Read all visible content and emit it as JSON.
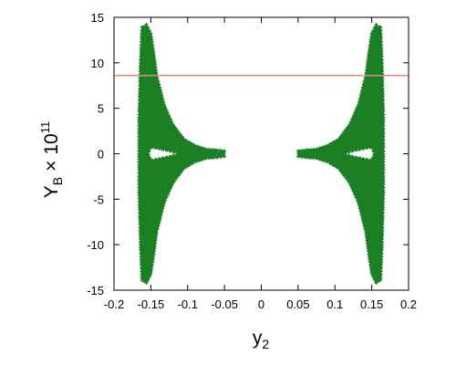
{
  "chart_data": {
    "type": "scatter",
    "xlabel": {
      "base": "y",
      "subscript": "2"
    },
    "ylabel": {
      "base": "Y",
      "subscript": "B",
      "times": "×",
      "power_base": "10",
      "exponent": "11"
    },
    "xlim": [
      -0.2,
      0.2
    ],
    "ylim": [
      -15,
      15
    ],
    "x_ticks": [
      {
        "value": -0.2,
        "label": "-0.2"
      },
      {
        "value": -0.15,
        "label": "-0.15"
      },
      {
        "value": -0.1,
        "label": "-0.1"
      },
      {
        "value": -0.05,
        "label": "-0.05"
      },
      {
        "value": 0,
        "label": "0"
      },
      {
        "value": 0.05,
        "label": "0.05"
      },
      {
        "value": 0.1,
        "label": "0.1"
      },
      {
        "value": 0.15,
        "label": "0.15"
      },
      {
        "value": 0.2,
        "label": "0.2"
      }
    ],
    "y_ticks": [
      {
        "value": -15,
        "label": "-15"
      },
      {
        "value": -10,
        "label": "-10"
      },
      {
        "value": -5,
        "label": "-5"
      },
      {
        "value": 0,
        "label": "0"
      },
      {
        "value": 5,
        "label": "5"
      },
      {
        "value": 10,
        "label": "10"
      },
      {
        "value": 15,
        "label": "15"
      }
    ],
    "grid": false,
    "legend": "none",
    "reference_line": {
      "orientation": "horizontal",
      "y": 8.6,
      "color": "#e08a8a"
    },
    "series": [
      {
        "marker": "+",
        "color": "#1b7f24",
        "regions": [
          {
            "side": "left",
            "outline": [
              [
                -0.162,
                13.9
              ],
              [
                -0.156,
                14.2
              ],
              [
                -0.15,
                13.2
              ],
              [
                -0.146,
                11.0
              ],
              [
                -0.142,
                8.6
              ],
              [
                -0.132,
                5.4
              ],
              [
                -0.12,
                3.2
              ],
              [
                -0.105,
                1.6
              ],
              [
                -0.09,
                0.9
              ],
              [
                -0.075,
                0.5
              ],
              [
                -0.06,
                0.4
              ],
              [
                -0.05,
                0.3
              ],
              [
                -0.05,
                -0.3
              ],
              [
                -0.06,
                -0.4
              ],
              [
                -0.075,
                -0.5
              ],
              [
                -0.09,
                -0.9
              ],
              [
                -0.105,
                -1.6
              ],
              [
                -0.12,
                -3.2
              ],
              [
                -0.132,
                -5.4
              ],
              [
                -0.142,
                -8.6
              ],
              [
                -0.146,
                -11.0
              ],
              [
                -0.15,
                -13.2
              ],
              [
                -0.156,
                -14.2
              ],
              [
                -0.162,
                -13.9
              ],
              [
                -0.164,
                -10.0
              ],
              [
                -0.166,
                -4.0
              ],
              [
                -0.166,
                0.0
              ],
              [
                -0.166,
                4.0
              ],
              [
                -0.164,
                10.0
              ]
            ]
          },
          {
            "side": "left",
            "hole": true,
            "outline": [
              [
                -0.15,
                0.7
              ],
              [
                -0.14,
                0.55
              ],
              [
                -0.125,
                0.3
              ],
              [
                -0.112,
                0.0
              ],
              [
                -0.125,
                -0.3
              ],
              [
                -0.14,
                -0.55
              ],
              [
                -0.15,
                -0.7
              ],
              [
                -0.153,
                0.0
              ]
            ]
          },
          {
            "side": "right",
            "outline": [
              [
                0.162,
                13.9
              ],
              [
                0.156,
                14.2
              ],
              [
                0.15,
                13.2
              ],
              [
                0.146,
                11.0
              ],
              [
                0.142,
                8.6
              ],
              [
                0.132,
                5.4
              ],
              [
                0.12,
                3.2
              ],
              [
                0.105,
                1.6
              ],
              [
                0.09,
                0.9
              ],
              [
                0.075,
                0.5
              ],
              [
                0.06,
                0.4
              ],
              [
                0.05,
                0.3
              ],
              [
                0.05,
                -0.3
              ],
              [
                0.06,
                -0.4
              ],
              [
                0.075,
                -0.5
              ],
              [
                0.09,
                -0.9
              ],
              [
                0.105,
                -1.6
              ],
              [
                0.12,
                -3.2
              ],
              [
                0.132,
                -5.4
              ],
              [
                0.142,
                -8.6
              ],
              [
                0.146,
                -11.0
              ],
              [
                0.15,
                -13.2
              ],
              [
                0.156,
                -14.2
              ],
              [
                0.162,
                -13.9
              ],
              [
                0.164,
                -10.0
              ],
              [
                0.166,
                -4.0
              ],
              [
                0.166,
                0.0
              ],
              [
                0.166,
                4.0
              ],
              [
                0.164,
                10.0
              ]
            ]
          },
          {
            "side": "right",
            "hole": true,
            "outline": [
              [
                0.15,
                0.7
              ],
              [
                0.14,
                0.55
              ],
              [
                0.125,
                0.3
              ],
              [
                0.112,
                0.0
              ],
              [
                0.125,
                -0.3
              ],
              [
                0.14,
                -0.55
              ],
              [
                0.15,
                -0.7
              ],
              [
                0.153,
                0.0
              ]
            ]
          }
        ]
      }
    ]
  }
}
